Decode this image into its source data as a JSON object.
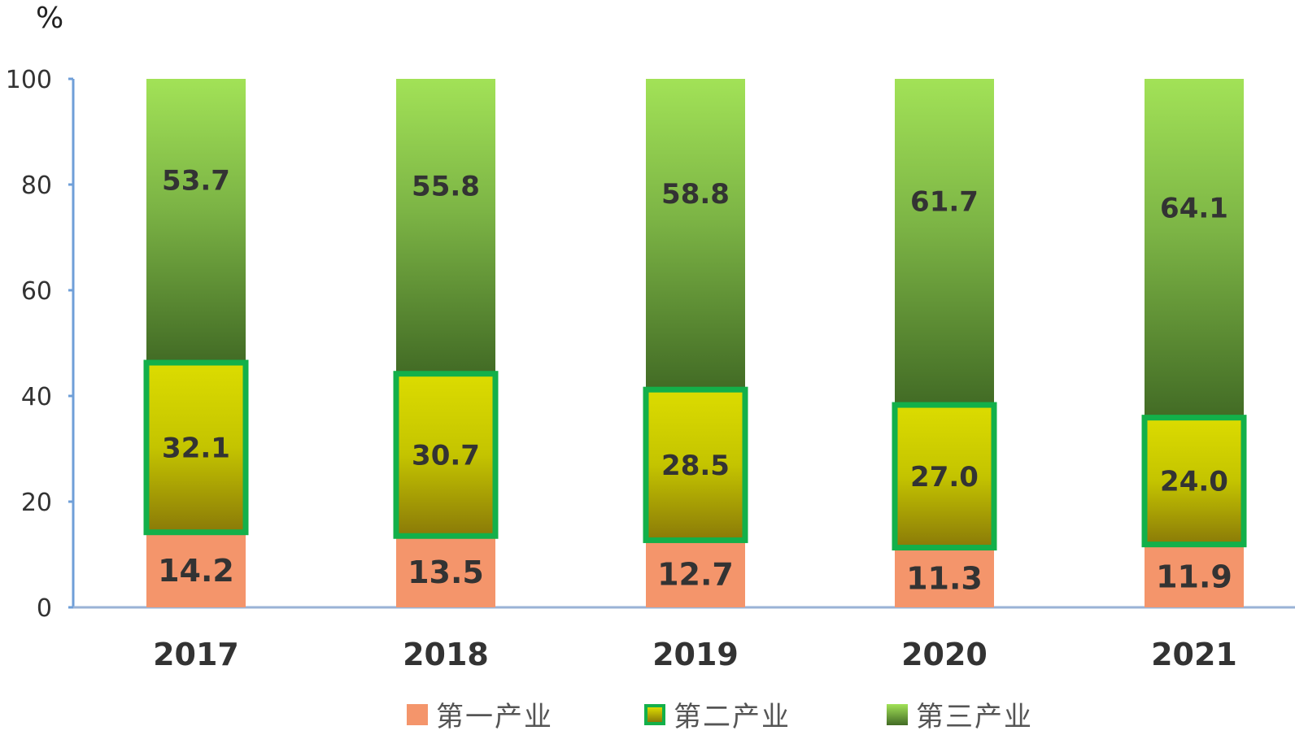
{
  "chart_data": {
    "type": "bar",
    "stacked": true,
    "unit": "%",
    "categories": [
      "2017",
      "2018",
      "2019",
      "2020",
      "2021"
    ],
    "ylim": [
      0,
      100
    ],
    "yticks": [
      0,
      20,
      40,
      60,
      80,
      100
    ],
    "series": [
      {
        "name": "第一产业",
        "values": [
          14.2,
          13.5,
          12.7,
          11.3,
          11.9
        ],
        "color": "#f4956b"
      },
      {
        "name": "第二产业",
        "values": [
          32.1,
          30.7,
          28.5,
          27.0,
          24.0
        ],
        "color": "#d4d400",
        "border_color": "#13b04a"
      },
      {
        "name": "第三产业",
        "values": [
          53.7,
          55.8,
          58.8,
          61.7,
          64.1
        ],
        "color": "#9edf55"
      }
    ],
    "legend_position": "bottom",
    "grid": false
  }
}
